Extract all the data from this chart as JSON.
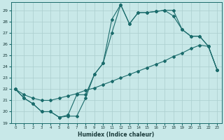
{
  "xlabel": "Humidex (Indice chaleur)",
  "xlim": [
    -0.5,
    23.5
  ],
  "ylim": [
    19,
    29.7
  ],
  "yticks": [
    19,
    20,
    21,
    22,
    23,
    24,
    25,
    26,
    27,
    28,
    29
  ],
  "xticks": [
    0,
    1,
    2,
    3,
    4,
    5,
    6,
    7,
    8,
    9,
    10,
    11,
    12,
    13,
    14,
    15,
    16,
    17,
    18,
    19,
    20,
    21,
    22,
    23
  ],
  "bg_color": "#c8e8e8",
  "line_color": "#1a6b6b",
  "grid_color": "#b0d8d8",
  "line1_x": [
    0,
    1,
    2,
    3,
    4,
    5,
    6,
    7,
    8,
    9,
    10,
    11,
    12,
    13,
    14,
    15,
    16,
    17,
    18,
    19,
    20,
    21,
    22,
    23
  ],
  "line1_y": [
    22.0,
    21.2,
    20.7,
    20.0,
    20.0,
    19.5,
    19.6,
    19.6,
    21.2,
    23.3,
    24.3,
    27.0,
    29.5,
    27.8,
    28.8,
    28.8,
    28.9,
    29.0,
    29.0,
    27.3,
    26.7,
    26.7,
    25.8,
    23.7
  ],
  "line2_x": [
    0,
    1,
    2,
    3,
    4,
    5,
    6,
    7,
    8,
    9,
    10,
    11,
    12,
    13,
    14,
    15,
    16,
    17,
    18,
    19,
    20,
    21,
    22,
    23
  ],
  "line2_y": [
    22.0,
    21.2,
    20.7,
    20.0,
    20.0,
    19.5,
    19.7,
    21.5,
    21.5,
    23.3,
    24.3,
    28.2,
    29.5,
    27.8,
    28.8,
    28.8,
    28.9,
    29.0,
    28.5,
    27.3,
    26.7,
    26.7,
    25.8,
    23.7
  ],
  "line3_x": [
    0,
    1,
    2,
    3,
    4,
    5,
    6,
    7,
    8,
    9,
    10,
    11,
    12,
    13,
    14,
    15,
    16,
    17,
    18,
    19,
    20,
    21,
    22,
    23
  ],
  "line3_y": [
    22.0,
    21.5,
    21.2,
    21.0,
    21.0,
    21.2,
    21.4,
    21.6,
    21.9,
    22.1,
    22.4,
    22.7,
    23.0,
    23.3,
    23.6,
    23.9,
    24.2,
    24.5,
    24.9,
    25.2,
    25.6,
    25.9,
    25.8,
    23.7
  ]
}
